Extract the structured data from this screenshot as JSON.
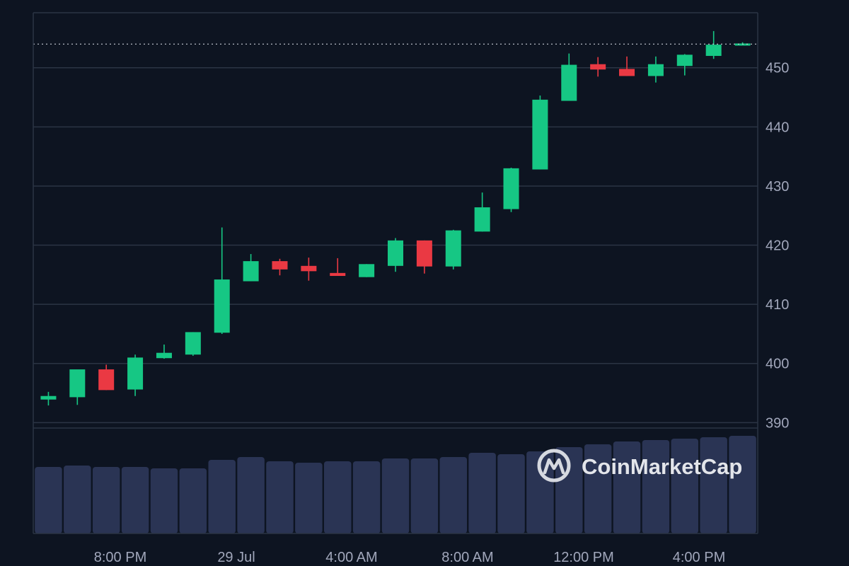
{
  "chart_data": {
    "type": "candlestick",
    "title": "",
    "xlabel": "",
    "ylabel": "",
    "watermark": "CoinMarketCap",
    "ylim": [
      388,
      459
    ],
    "y_ticks": [
      390,
      400,
      410,
      420,
      430,
      440,
      450
    ],
    "x_ticks": [
      "8:00 PM",
      "29 Jul",
      "4:00 AM",
      "8:00 AM",
      "12:00 PM",
      "4:00 PM"
    ],
    "last_price": 454,
    "grid": true,
    "colors": {
      "background": "#0d1421",
      "grid": "#2b3444",
      "up": "#16c784",
      "down": "#ea3943",
      "volume": "#2a3454",
      "axis_text": "#a1a7bb"
    },
    "candles": [
      {
        "time": "6:00 PM",
        "open": 393.9,
        "high": 395.2,
        "low": 392.9,
        "close": 394.5
      },
      {
        "time": "7:00 PM",
        "open": 394.3,
        "high": 398.8,
        "low": 393.0,
        "close": 399.0
      },
      {
        "time": "8:00 PM",
        "open": 399.0,
        "high": 399.8,
        "low": 395.5,
        "close": 395.5
      },
      {
        "time": "9:00 PM",
        "open": 395.6,
        "high": 401.5,
        "low": 394.5,
        "close": 401.0
      },
      {
        "time": "10:00 PM",
        "open": 400.9,
        "high": 403.2,
        "low": 400.8,
        "close": 401.8
      },
      {
        "time": "11:00 PM",
        "open": 401.5,
        "high": 405.3,
        "low": 401.3,
        "close": 405.3
      },
      {
        "time": "12:00 AM",
        "open": 405.2,
        "high": 423.0,
        "low": 405.0,
        "close": 414.2
      },
      {
        "time": "1:00 AM",
        "open": 413.9,
        "high": 418.5,
        "low": 413.9,
        "close": 417.3
      },
      {
        "time": "2:00 AM",
        "open": 417.3,
        "high": 417.7,
        "low": 414.9,
        "close": 415.9
      },
      {
        "time": "3:00 AM",
        "open": 416.5,
        "high": 417.9,
        "low": 414.0,
        "close": 415.6
      },
      {
        "time": "4:00 AM",
        "open": 415.3,
        "high": 417.8,
        "low": 414.9,
        "close": 414.8
      },
      {
        "time": "5:00 AM",
        "open": 414.6,
        "high": 416.8,
        "low": 414.6,
        "close": 416.8
      },
      {
        "time": "6:00 AM",
        "open": 416.5,
        "high": 421.2,
        "low": 415.5,
        "close": 420.8
      },
      {
        "time": "7:00 AM",
        "open": 420.8,
        "high": 420.8,
        "low": 415.2,
        "close": 416.4
      },
      {
        "time": "8:00 AM",
        "open": 416.4,
        "high": 422.6,
        "low": 415.9,
        "close": 422.5
      },
      {
        "time": "9:00 AM",
        "open": 422.3,
        "high": 428.9,
        "low": 422.3,
        "close": 426.4
      },
      {
        "time": "10:00 AM",
        "open": 426.1,
        "high": 433.1,
        "low": 425.6,
        "close": 433.0
      },
      {
        "time": "11:00 AM",
        "open": 432.8,
        "high": 445.3,
        "low": 432.8,
        "close": 444.6
      },
      {
        "time": "12:00 PM",
        "open": 444.4,
        "high": 452.4,
        "low": 444.4,
        "close": 450.5
      },
      {
        "time": "1:00 PM",
        "open": 450.6,
        "high": 451.8,
        "low": 448.5,
        "close": 449.7
      },
      {
        "time": "2:00 PM",
        "open": 449.8,
        "high": 451.9,
        "low": 448.6,
        "close": 448.6
      },
      {
        "time": "3:00 PM",
        "open": 448.6,
        "high": 451.9,
        "low": 447.5,
        "close": 450.6
      },
      {
        "time": "4:00 PM",
        "open": 450.3,
        "high": 452.3,
        "low": 448.7,
        "close": 452.2
      },
      {
        "time": "5:00 PM",
        "open": 452.0,
        "high": 456.2,
        "low": 451.5,
        "close": 453.9
      },
      {
        "time": "6:00 PM",
        "open": 453.8,
        "high": 454.3,
        "low": 453.8,
        "close": 454.1
      }
    ],
    "volume": [
      94,
      96,
      94,
      94,
      92,
      92,
      104,
      108,
      102,
      100,
      102,
      102,
      106,
      106,
      108,
      114,
      112,
      116,
      122,
      126,
      130,
      132,
      134,
      136,
      138
    ]
  }
}
